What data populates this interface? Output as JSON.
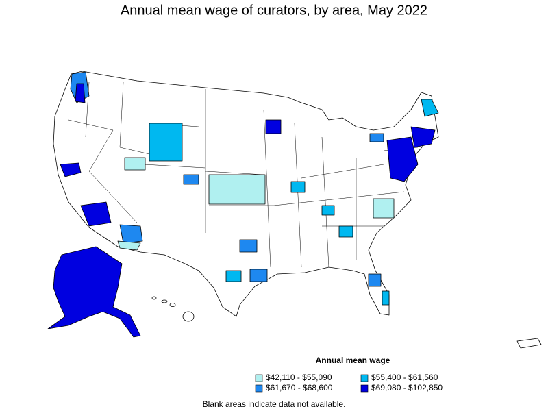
{
  "title": "Annual mean wage of curators, by area, May 2022",
  "legend": {
    "title": "Annual mean wage",
    "items": [
      {
        "label": "$42,110 - $55,090",
        "color": "#b0f0f0"
      },
      {
        "label": "$55,400 - $61,560",
        "color": "#00b8f0"
      },
      {
        "label": "$61,670 - $68,600",
        "color": "#1e88f0"
      },
      {
        "label": "$69,080 - $102,850",
        "color": "#0000e0"
      }
    ]
  },
  "note": "Blank areas indicate data not available."
}
